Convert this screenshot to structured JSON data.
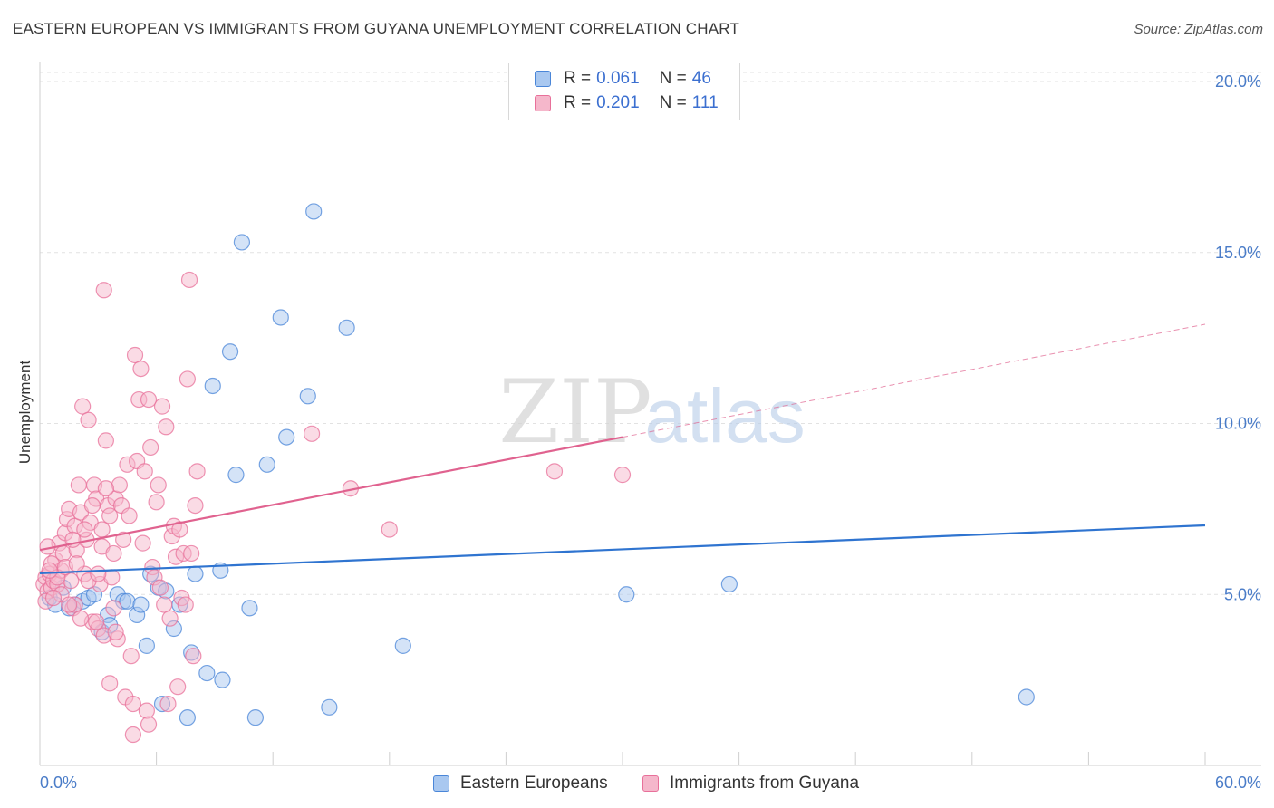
{
  "title": "EASTERN EUROPEAN VS IMMIGRANTS FROM GUYANA UNEMPLOYMENT CORRELATION CHART",
  "source": "Source: ZipAtlas.com",
  "watermark": {
    "zip": "ZIP",
    "atlas": "atlas"
  },
  "legend": {
    "row1": {
      "r_label": "R =",
      "r_value": "0.061",
      "n_label": "N =",
      "n_value": "46"
    },
    "row2": {
      "r_label": "R =",
      "r_value": "0.201",
      "n_label": "N =",
      "n_value": "111"
    }
  },
  "bottom_legend": {
    "series1": "Eastern Europeans",
    "series2": "Immigrants from Guyana"
  },
  "colors": {
    "blue": "#4a86d8",
    "blue_fill": "#a9c8f0",
    "pink": "#e8709a",
    "pink_fill": "#f5b7cb",
    "tick_text": "#4a7cc8"
  },
  "chart_data": {
    "type": "scatter",
    "title": "EASTERN EUROPEAN VS IMMIGRANTS FROM GUYANA UNEMPLOYMENT CORRELATION CHART",
    "xlabel": "",
    "ylabel": "Unemployment",
    "xlim": [
      0,
      60
    ],
    "ylim": [
      0,
      20
    ],
    "x_tick_labels": [
      "0.0%",
      "60.0%"
    ],
    "y_ticks": [
      5,
      10,
      15,
      20
    ],
    "y_tick_labels": [
      "5.0%",
      "10.0%",
      "15.0%",
      "20.0%"
    ],
    "series": [
      {
        "name": "Eastern Europeans",
        "r": 0.061,
        "n": 46,
        "trend": {
          "x0": 0,
          "y0": 5.62,
          "x1": 60,
          "y1": 7.02,
          "dashed_from": null
        },
        "points": [
          [
            0.5,
            4.9
          ],
          [
            0.8,
            4.7
          ],
          [
            1.2,
            5.2
          ],
          [
            1.5,
            4.6
          ],
          [
            1.8,
            4.7
          ],
          [
            2.2,
            4.8
          ],
          [
            2.5,
            4.9
          ],
          [
            2.8,
            5.0
          ],
          [
            3.2,
            3.9
          ],
          [
            3.5,
            4.4
          ],
          [
            3.6,
            4.1
          ],
          [
            4.0,
            5.0
          ],
          [
            4.3,
            4.8
          ],
          [
            4.5,
            4.8
          ],
          [
            5.0,
            4.4
          ],
          [
            5.2,
            4.7
          ],
          [
            5.5,
            3.5
          ],
          [
            5.7,
            5.6
          ],
          [
            6.1,
            5.2
          ],
          [
            6.3,
            1.8
          ],
          [
            6.5,
            5.1
          ],
          [
            6.9,
            4.0
          ],
          [
            7.2,
            4.7
          ],
          [
            7.6,
            1.4
          ],
          [
            7.8,
            3.3
          ],
          [
            8.0,
            5.6
          ],
          [
            8.6,
            2.7
          ],
          [
            8.9,
            11.1
          ],
          [
            9.3,
            5.7
          ],
          [
            9.4,
            2.5
          ],
          [
            9.8,
            12.1
          ],
          [
            10.1,
            8.5
          ],
          [
            10.4,
            15.3
          ],
          [
            10.8,
            4.6
          ],
          [
            11.1,
            1.4
          ],
          [
            11.7,
            8.8
          ],
          [
            12.4,
            13.1
          ],
          [
            12.7,
            9.6
          ],
          [
            13.8,
            10.8
          ],
          [
            14.1,
            16.2
          ],
          [
            14.9,
            1.7
          ],
          [
            15.8,
            12.8
          ],
          [
            18.7,
            3.5
          ],
          [
            30.2,
            5.0
          ],
          [
            35.5,
            5.3
          ],
          [
            50.8,
            2.0
          ]
        ]
      },
      {
        "name": "Immigrants from Guyana",
        "r": 0.201,
        "n": 111,
        "trend": {
          "x0": 0,
          "y0": 6.3,
          "x1": 60,
          "y1": 12.9,
          "dashed_from": 30
        },
        "points": [
          [
            0.2,
            5.3
          ],
          [
            0.3,
            5.5
          ],
          [
            0.4,
            5.1
          ],
          [
            0.5,
            5.6
          ],
          [
            0.6,
            5.2
          ],
          [
            0.7,
            5.4
          ],
          [
            0.8,
            6.0
          ],
          [
            0.9,
            5.3
          ],
          [
            1.0,
            6.5
          ],
          [
            1.1,
            5.7
          ],
          [
            1.2,
            6.2
          ],
          [
            1.3,
            6.8
          ],
          [
            1.4,
            7.2
          ],
          [
            1.5,
            7.5
          ],
          [
            1.6,
            5.4
          ],
          [
            1.7,
            4.6
          ],
          [
            1.8,
            7.0
          ],
          [
            1.9,
            6.3
          ],
          [
            2.0,
            8.2
          ],
          [
            2.1,
            7.4
          ],
          [
            2.2,
            10.5
          ],
          [
            2.3,
            5.6
          ],
          [
            2.4,
            6.6
          ],
          [
            2.5,
            10.1
          ],
          [
            2.6,
            7.1
          ],
          [
            2.7,
            4.2
          ],
          [
            2.8,
            8.2
          ],
          [
            2.9,
            7.8
          ],
          [
            3.0,
            4.0
          ],
          [
            3.1,
            5.3
          ],
          [
            3.2,
            6.4
          ],
          [
            3.3,
            3.8
          ],
          [
            3.4,
            9.5
          ],
          [
            3.5,
            7.6
          ],
          [
            3.6,
            2.4
          ],
          [
            3.7,
            5.5
          ],
          [
            3.8,
            4.6
          ],
          [
            3.9,
            7.8
          ],
          [
            4.0,
            3.7
          ],
          [
            4.1,
            8.2
          ],
          [
            4.2,
            7.6
          ],
          [
            4.3,
            6.6
          ],
          [
            4.4,
            2.0
          ],
          [
            4.5,
            8.8
          ],
          [
            4.6,
            7.3
          ],
          [
            4.7,
            3.2
          ],
          [
            4.8,
            1.8
          ],
          [
            4.9,
            12.0
          ],
          [
            5.0,
            8.9
          ],
          [
            5.1,
            10.7
          ],
          [
            5.2,
            11.6
          ],
          [
            5.3,
            6.5
          ],
          [
            5.4,
            8.6
          ],
          [
            5.5,
            1.6
          ],
          [
            5.6,
            10.7
          ],
          [
            5.7,
            9.3
          ],
          [
            5.8,
            5.8
          ],
          [
            5.9,
            5.5
          ],
          [
            6.0,
            7.7
          ],
          [
            6.1,
            8.2
          ],
          [
            6.2,
            5.2
          ],
          [
            6.3,
            10.5
          ],
          [
            6.4,
            4.7
          ],
          [
            6.5,
            9.9
          ],
          [
            6.6,
            1.8
          ],
          [
            6.7,
            4.3
          ],
          [
            6.8,
            6.7
          ],
          [
            6.9,
            7.0
          ],
          [
            7.0,
            6.1
          ],
          [
            7.1,
            2.3
          ],
          [
            7.2,
            6.9
          ],
          [
            7.3,
            4.9
          ],
          [
            7.4,
            6.2
          ],
          [
            7.5,
            4.7
          ],
          [
            7.6,
            11.3
          ],
          [
            7.7,
            14.2
          ],
          [
            7.8,
            6.2
          ],
          [
            7.9,
            3.2
          ],
          [
            8.0,
            7.6
          ],
          [
            8.1,
            8.6
          ],
          [
            3.3,
            13.9
          ],
          [
            4.8,
            0.9
          ],
          [
            5.6,
            1.2
          ],
          [
            3.9,
            3.9
          ],
          [
            2.9,
            4.2
          ],
          [
            1.8,
            4.7
          ],
          [
            16.0,
            8.1
          ],
          [
            14.0,
            9.7
          ],
          [
            18.0,
            6.9
          ],
          [
            26.5,
            8.6
          ],
          [
            30.0,
            8.5
          ],
          [
            0.4,
            6.4
          ],
          [
            0.6,
            5.9
          ],
          [
            0.9,
            5.5
          ],
          [
            1.1,
            5.0
          ],
          [
            1.3,
            5.8
          ],
          [
            1.5,
            4.7
          ],
          [
            1.7,
            6.6
          ],
          [
            1.9,
            5.9
          ],
          [
            2.1,
            4.3
          ],
          [
            2.3,
            6.9
          ],
          [
            2.5,
            5.4
          ],
          [
            2.7,
            7.6
          ],
          [
            3.0,
            5.6
          ],
          [
            3.2,
            6.9
          ],
          [
            3.4,
            8.1
          ],
          [
            3.6,
            7.3
          ],
          [
            3.8,
            6.2
          ],
          [
            0.3,
            4.8
          ],
          [
            0.5,
            5.7
          ],
          [
            0.7,
            4.9
          ]
        ]
      }
    ]
  }
}
